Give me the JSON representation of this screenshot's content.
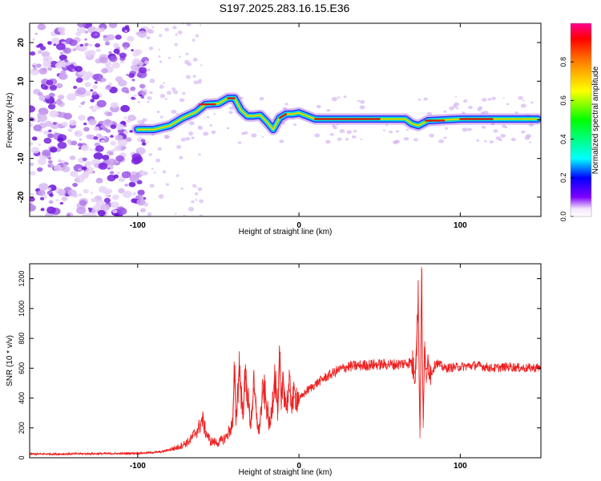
{
  "figure": {
    "title": "S197.2025.283.16.15.E36"
  },
  "colors": {
    "axis": "#000000",
    "snr_line": "#ee2020",
    "ridge_core": "#e01010",
    "noise": "#8a2be2"
  },
  "chart_data": [
    {
      "type": "heatmap",
      "xlabel": "Height of straight line (km)",
      "ylabel": "Frequency (Hz)",
      "xlim": [
        -167,
        150
      ],
      "ylim": [
        -25,
        25
      ],
      "x_ticks": [
        -100,
        0,
        100
      ],
      "y_ticks": [
        20,
        10,
        0,
        -10,
        -20
      ],
      "colorbar": {
        "label": "Normalized spectral amplitude",
        "range": [
          0,
          1
        ],
        "ticks": [
          0.0,
          0.2,
          0.4,
          0.6,
          0.8
        ]
      },
      "ridge": {
        "x": [
          -100,
          -90,
          -80,
          -72,
          -64,
          -58,
          -50,
          -44,
          -40,
          -36,
          -32,
          -28,
          -24,
          -20,
          -16,
          -12,
          -8,
          -4,
          0,
          10,
          30,
          50,
          66,
          70,
          74,
          80,
          100,
          120,
          148
        ],
        "y": [
          -2.5,
          -2.5,
          -1.5,
          0.5,
          2.0,
          4.0,
          4.2,
          5.6,
          5.6,
          2.5,
          1.0,
          1.0,
          1.2,
          -0.5,
          -2.5,
          0.5,
          1.5,
          1.5,
          1.8,
          0.2,
          0.2,
          0.2,
          0.2,
          -1.0,
          -1.5,
          -0.2,
          0.2,
          0.2,
          0.2
        ]
      }
    },
    {
      "type": "line",
      "xlabel": "Height of straight line (km)",
      "ylabel": "SNR (10 * v/v)",
      "xlim": [
        -167,
        150
      ],
      "ylim": [
        0,
        1300
      ],
      "x_ticks": [
        -100,
        0,
        100
      ],
      "y_ticks": [
        0,
        200,
        400,
        600,
        800,
        1000,
        1200
      ],
      "series": [
        {
          "name": "SNR",
          "x": [
            -167,
            -150,
            -130,
            -110,
            -95,
            -85,
            -75,
            -68,
            -62,
            -60,
            -58,
            -55,
            -50,
            -45,
            -41,
            -40,
            -39,
            -37,
            -35,
            -33,
            -30,
            -28,
            -25,
            -22,
            -18,
            -15,
            -13,
            -12,
            -11,
            -10,
            -8,
            -6,
            -4,
            -2,
            0,
            5,
            10,
            15,
            20,
            25,
            30,
            40,
            50,
            60,
            70,
            72,
            74,
            75,
            76,
            77,
            78,
            79,
            80,
            82,
            85,
            90,
            100,
            110,
            120,
            130,
            140,
            150
          ],
          "y": [
            25,
            25,
            27,
            28,
            32,
            40,
            70,
            110,
            200,
            260,
            180,
            110,
            100,
            140,
            230,
            580,
            250,
            630,
            300,
            550,
            220,
            470,
            160,
            480,
            200,
            560,
            300,
            680,
            320,
            560,
            340,
            460,
            380,
            430,
            390,
            450,
            490,
            530,
            560,
            590,
            610,
            620,
            625,
            625,
            640,
            560,
            1060,
            130,
            1280,
            200,
            780,
            500,
            660,
            560,
            640,
            600,
            610,
            620,
            600,
            610,
            600,
            605
          ]
        }
      ]
    }
  ]
}
